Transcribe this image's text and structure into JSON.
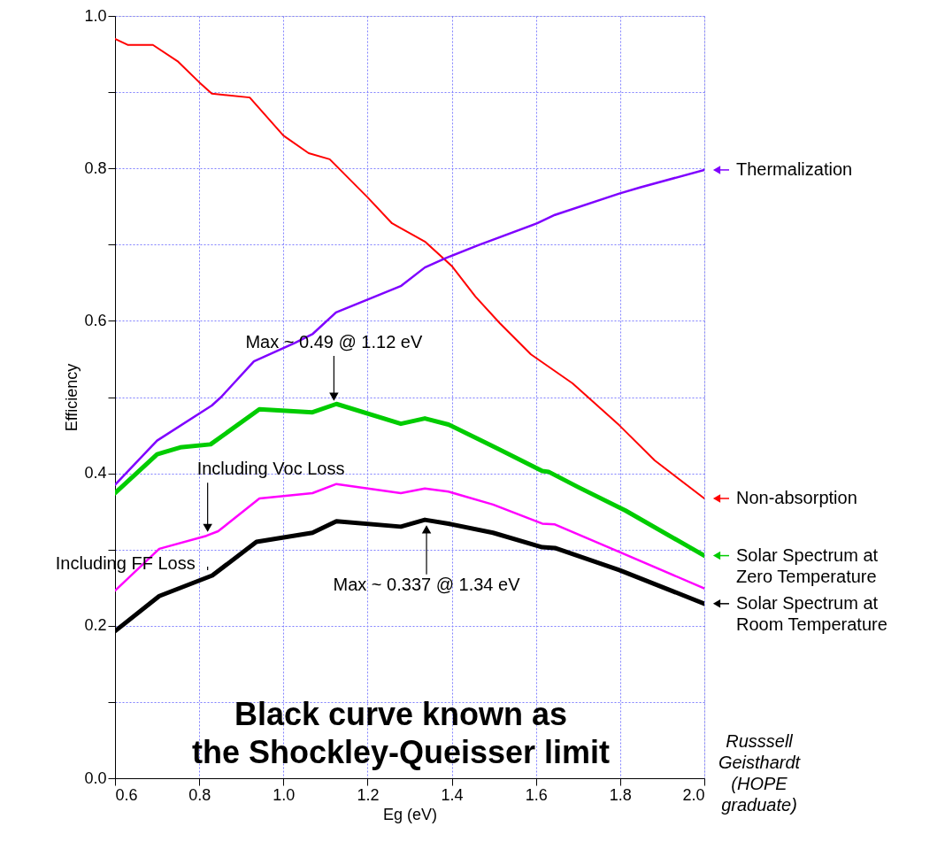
{
  "chart_data": {
    "type": "line",
    "xlabel": "Eg (eV)",
    "ylabel": "Efficiency",
    "xlim": [
      0.6,
      2.0
    ],
    "ylim": [
      0.0,
      1.0
    ],
    "xticks": [
      0.6,
      0.8,
      {
        "value": 1,
        "label": "1.0"
      },
      1.2,
      1.4,
      1.6,
      1.8,
      {
        "value": 2,
        "label": "2.0"
      }
    ],
    "yticks": [
      {
        "value": 0,
        "label": "0.0"
      },
      {
        "value": 0.1,
        "label": null
      },
      0.2,
      {
        "value": 0.3,
        "label": null
      },
      0.4,
      {
        "value": 0.5,
        "label": null
      },
      0.6,
      {
        "value": 0.7,
        "label": null
      },
      0.8,
      {
        "value": 0.9,
        "label": null
      },
      {
        "value": 1,
        "label": "1.0"
      }
    ],
    "grid": true,
    "legend": "right",
    "marker": "none",
    "line_style": "solid",
    "series": [
      {
        "name": "Non-absorption",
        "color": "#ff0000",
        "x": [
          0.6,
          0.63,
          0.69,
          0.75,
          0.8,
          0.83,
          0.92,
          1.0,
          1.06,
          1.11,
          1.2,
          1.258,
          1.336,
          1.4,
          1.456,
          1.514,
          1.588,
          1.687,
          1.798,
          1.882,
          2.0
        ],
        "values": [
          0.97,
          0.962,
          0.962,
          0.94,
          0.913,
          0.898,
          0.893,
          0.843,
          0.82,
          0.812,
          0.762,
          0.728,
          0.704,
          0.672,
          0.632,
          0.597,
          0.556,
          0.518,
          0.463,
          0.417,
          0.367
        ]
      },
      {
        "name": "Thermalization",
        "color": "#7f00ff",
        "x": [
          0.6,
          0.7,
          0.83,
          0.852,
          0.93,
          1.027,
          1.07,
          1.125,
          1.2,
          1.28,
          1.336,
          1.384,
          1.462,
          1.603,
          1.645,
          1.798,
          1.847,
          2.0
        ],
        "values": [
          0.385,
          0.443,
          0.489,
          0.5,
          0.547,
          0.571,
          0.583,
          0.611,
          0.628,
          0.646,
          0.67,
          0.682,
          0.699,
          0.728,
          0.739,
          0.767,
          0.775,
          0.798
        ]
      },
      {
        "name": "Solar Spectrum at Zero Temperature",
        "color": "#00cc00",
        "x": [
          0.6,
          0.7,
          0.755,
          0.827,
          0.943,
          1.069,
          1.126,
          1.279,
          1.336,
          1.392,
          1.489,
          1.615,
          1.63,
          1.7,
          1.813,
          2.0
        ],
        "values": [
          0.374,
          0.425,
          0.434,
          0.438,
          0.484,
          0.48,
          0.491,
          0.465,
          0.472,
          0.464,
          0.438,
          0.403,
          0.402,
          0.382,
          0.351,
          0.292
        ]
      },
      {
        "color": "#ff00ff",
        "x": [
          0.6,
          0.705,
          0.817,
          0.845,
          0.943,
          1.069,
          1.126,
          1.279,
          1.336,
          1.392,
          1.498,
          1.615,
          1.645,
          1.798,
          2.0
        ],
        "values": [
          0.246,
          0.301,
          0.318,
          0.324,
          0.367,
          0.374,
          0.386,
          0.374,
          0.38,
          0.376,
          0.359,
          0.334,
          0.333,
          0.297,
          0.249
        ]
      },
      {
        "name": "Solar Spectrum at Room Temperature",
        "color": "#000000",
        "x": [
          0.6,
          0.705,
          0.831,
          0.936,
          1.069,
          1.126,
          1.279,
          1.336,
          1.392,
          1.498,
          1.615,
          1.645,
          1.798,
          2.0
        ],
        "values": [
          0.193,
          0.239,
          0.266,
          0.31,
          0.322,
          0.337,
          0.33,
          0.339,
          0.334,
          0.322,
          0.303,
          0.302,
          0.273,
          0.229
        ]
      }
    ],
    "annotations": [
      {
        "text": "Max ~ 0.49 @ 1.12 eV",
        "x": 1.12,
        "y": 0.49
      },
      {
        "text": "Max ~ 0.337 @ 1.34 eV",
        "x": 1.34,
        "y": 0.337
      },
      {
        "text": "Including Voc Loss",
        "x": 0.82,
        "y": 0.318
      },
      {
        "text": "Including FF Loss",
        "x": 0.82,
        "y": 0.266
      },
      "Black curve known as the Shockley-Queisser limit",
      "Russsell Geisthardt (HOPE graduate)"
    ]
  }
}
